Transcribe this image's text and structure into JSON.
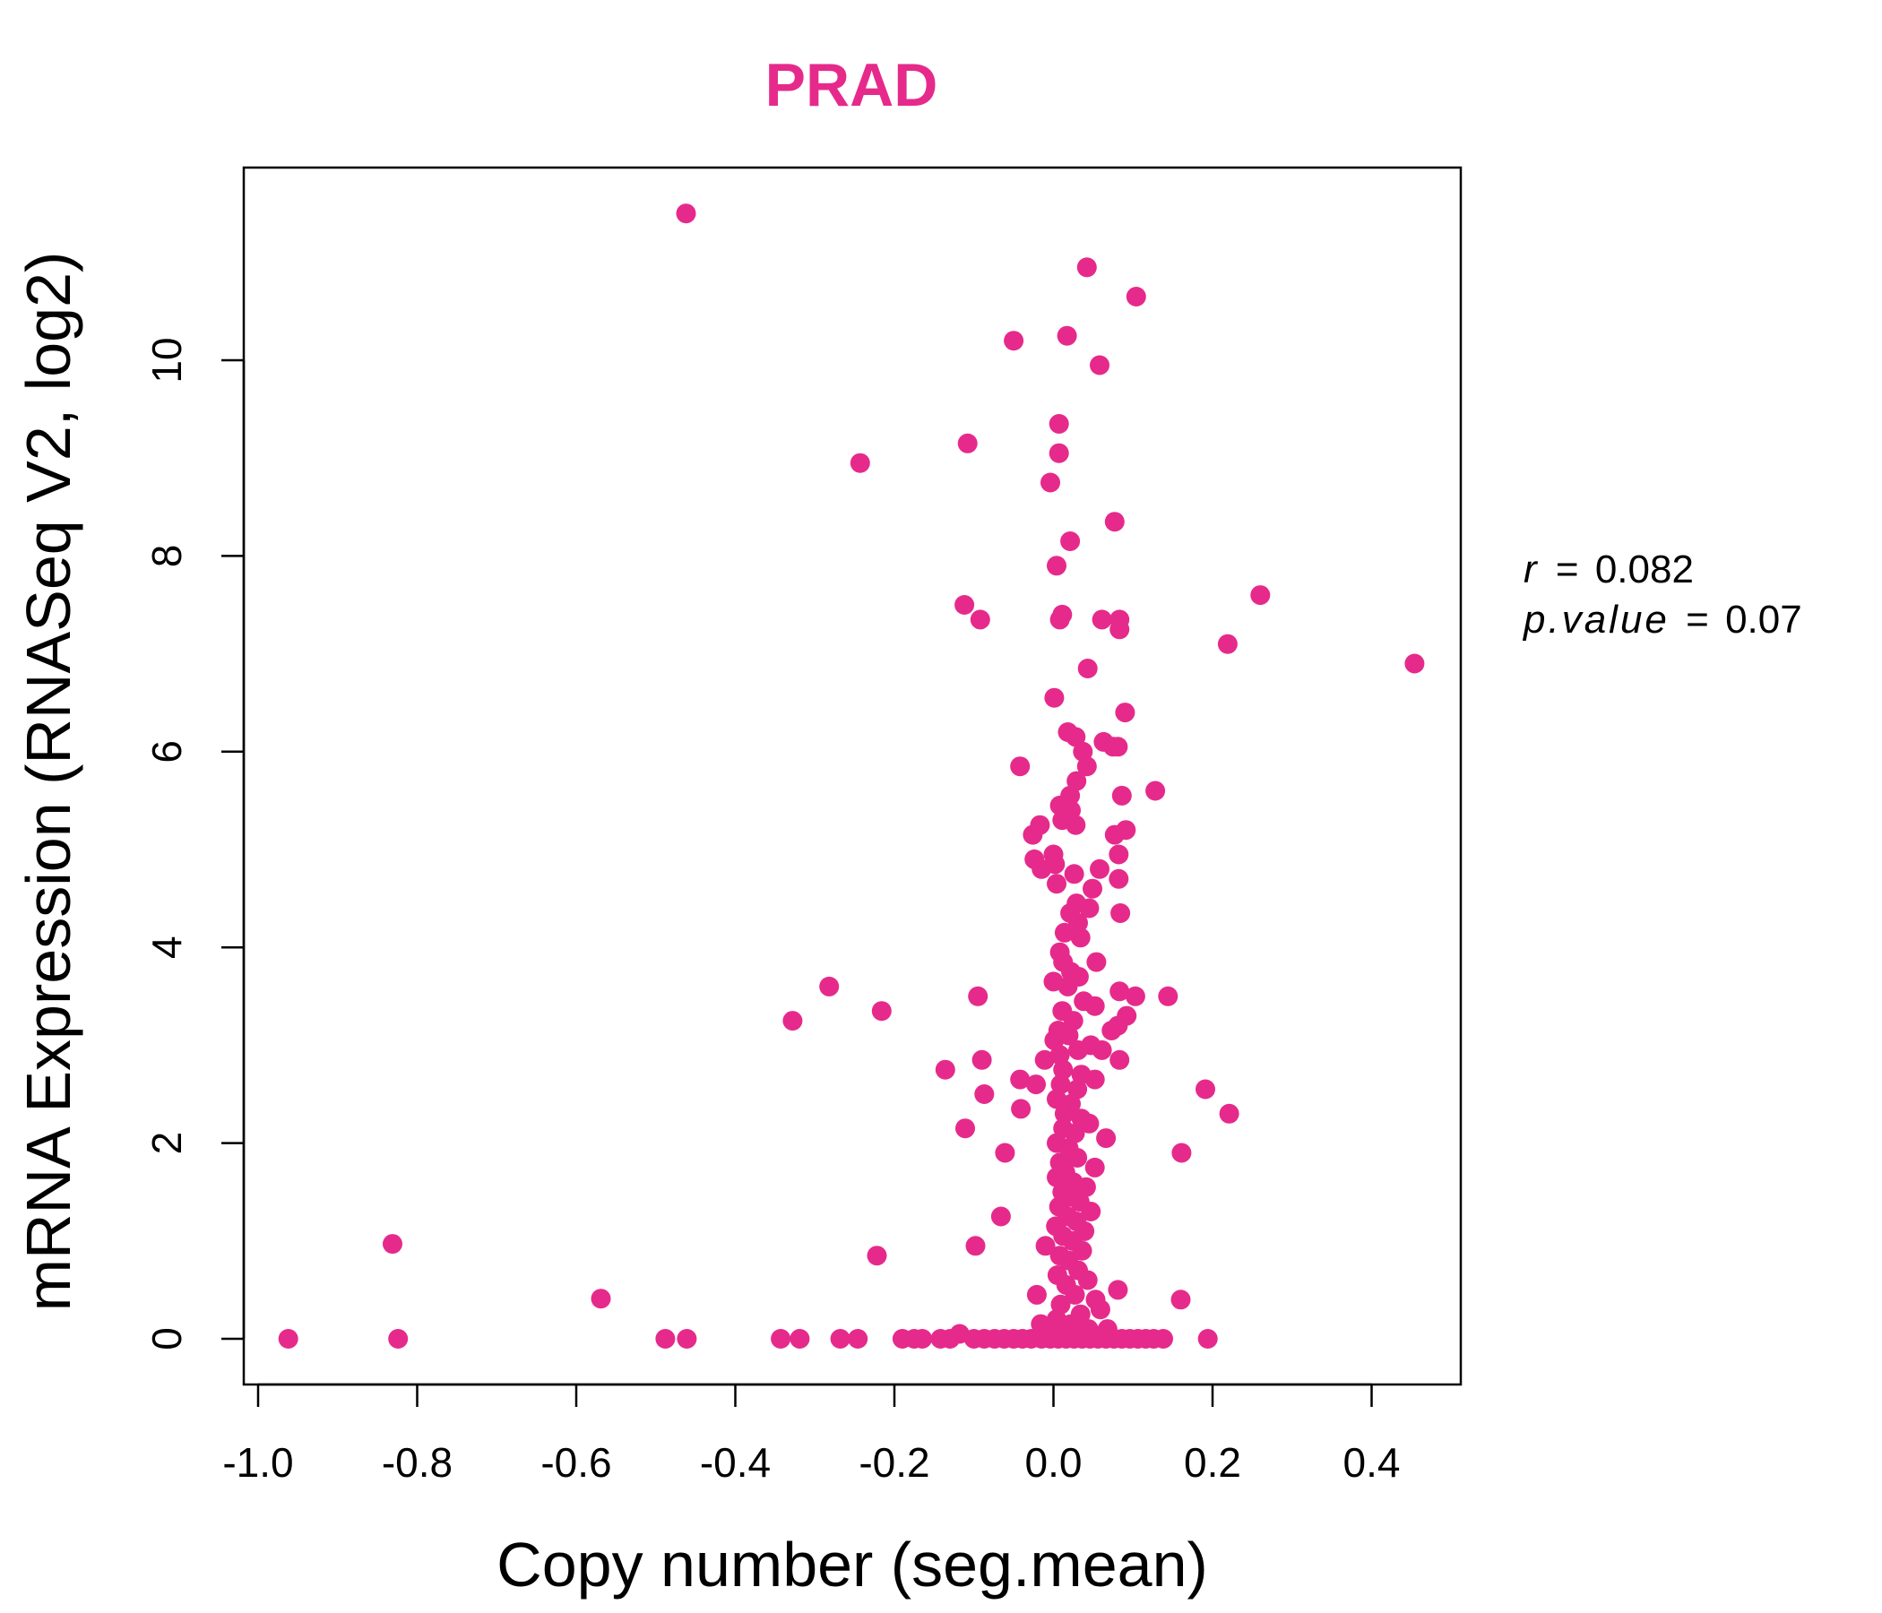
{
  "chart_data": {
    "type": "scatter",
    "title": "PRAD",
    "xlabel": "Copy number (seg.mean)",
    "ylabel": "mRNA Expression (RNASeq V2, log2)",
    "xlim": [
      -1.0,
      0.5
    ],
    "ylim": [
      -0.9,
      11.5
    ],
    "xticks": [
      -1.0,
      -0.8,
      -0.6,
      -0.4,
      -0.2,
      0.0,
      0.2,
      0.4
    ],
    "xtick_labels": [
      "-1.0",
      "-0.8",
      "-0.6",
      "-0.4",
      "-0.2",
      "0.0",
      "0.2",
      "0.4"
    ],
    "yticks": [
      0,
      2,
      4,
      6,
      8,
      10
    ],
    "ytick_labels": [
      "0",
      "2",
      "4",
      "6",
      "8",
      "10"
    ],
    "grid": false,
    "colors": {
      "point": "#e62a8b",
      "title": "#e62a8b",
      "axis": "#000000"
    },
    "stats": {
      "r_symbol": "r",
      "r_value": "0.082",
      "p_symbol": "p.value",
      "p_value": "0.07",
      "equals": "="
    },
    "points": [
      [
        -0.462,
        11.5
      ],
      [
        0.042,
        10.95
      ],
      [
        0.104,
        10.65
      ],
      [
        -0.05,
        10.2
      ],
      [
        0.017,
        10.25
      ],
      [
        0.058,
        9.95
      ],
      [
        0.007,
        9.35
      ],
      [
        -0.108,
        9.15
      ],
      [
        -0.243,
        8.95
      ],
      [
        0.007,
        9.05
      ],
      [
        -0.004,
        8.75
      ],
      [
        0.077,
        8.35
      ],
      [
        0.021,
        8.15
      ],
      [
        0.004,
        7.9
      ],
      [
        0.26,
        7.6
      ],
      [
        -0.112,
        7.5
      ],
      [
        -0.092,
        7.35
      ],
      [
        0.011,
        7.4
      ],
      [
        0.008,
        7.35
      ],
      [
        0.061,
        7.35
      ],
      [
        0.083,
        7.35
      ],
      [
        0.083,
        7.25
      ],
      [
        0.219,
        7.1
      ],
      [
        0.454,
        6.9
      ],
      [
        0.043,
        6.85
      ],
      [
        0.001,
        6.55
      ],
      [
        0.09,
        6.4
      ],
      [
        0.018,
        6.2
      ],
      [
        0.028,
        6.15
      ],
      [
        0.063,
        6.1
      ],
      [
        0.075,
        6.05
      ],
      [
        0.081,
        6.05
      ],
      [
        0.037,
        6.0
      ],
      [
        0.042,
        5.85
      ],
      [
        -0.042,
        5.85
      ],
      [
        0.029,
        5.7
      ],
      [
        0.128,
        5.6
      ],
      [
        0.086,
        5.55
      ],
      [
        0.021,
        5.55
      ],
      [
        0.008,
        5.45
      ],
      [
        0.022,
        5.4
      ],
      [
        0.011,
        5.3
      ],
      [
        -0.017,
        5.25
      ],
      [
        0.091,
        5.2
      ],
      [
        -0.026,
        5.15
      ],
      [
        0.077,
        5.15
      ],
      [
        0.028,
        5.25
      ],
      [
        0.082,
        4.95
      ],
      [
        0.0,
        4.95
      ],
      [
        -0.024,
        4.9
      ],
      [
        0.002,
        4.85
      ],
      [
        -0.015,
        4.8
      ],
      [
        0.058,
        4.8
      ],
      [
        0.026,
        4.75
      ],
      [
        0.082,
        4.7
      ],
      [
        0.004,
        4.65
      ],
      [
        0.049,
        4.6
      ],
      [
        0.029,
        4.45
      ],
      [
        0.045,
        4.4
      ],
      [
        0.021,
        4.35
      ],
      [
        0.084,
        4.35
      ],
      [
        0.031,
        4.25
      ],
      [
        0.014,
        4.15
      ],
      [
        0.034,
        4.1
      ],
      [
        0.008,
        3.95
      ],
      [
        0.012,
        3.85
      ],
      [
        0.054,
        3.85
      ],
      [
        0.022,
        3.75
      ],
      [
        0.032,
        3.7
      ],
      [
        0.0,
        3.65
      ],
      [
        0.018,
        3.6
      ],
      [
        0.083,
        3.55
      ],
      [
        0.144,
        3.5
      ],
      [
        0.103,
        3.5
      ],
      [
        -0.095,
        3.5
      ],
      [
        0.038,
        3.45
      ],
      [
        0.052,
        3.4
      ],
      [
        0.011,
        3.35
      ],
      [
        -0.216,
        3.35
      ],
      [
        -0.282,
        3.6
      ],
      [
        -0.328,
        3.25
      ],
      [
        0.092,
        3.3
      ],
      [
        0.025,
        3.25
      ],
      [
        0.006,
        3.15
      ],
      [
        0.019,
        3.1
      ],
      [
        0.073,
        3.15
      ],
      [
        0.081,
        3.2
      ],
      [
        0.001,
        3.05
      ],
      [
        0.031,
        2.95
      ],
      [
        0.047,
        3.0
      ],
      [
        0.061,
        2.95
      ],
      [
        0.008,
        2.9
      ],
      [
        0.083,
        2.85
      ],
      [
        -0.011,
        2.85
      ],
      [
        -0.09,
        2.85
      ],
      [
        -0.136,
        2.75
      ],
      [
        0.012,
        2.75
      ],
      [
        0.035,
        2.7
      ],
      [
        0.052,
        2.65
      ],
      [
        -0.042,
        2.65
      ],
      [
        -0.022,
        2.6
      ],
      [
        0.009,
        2.6
      ],
      [
        0.03,
        2.55
      ],
      [
        0.191,
        2.55
      ],
      [
        -0.087,
        2.5
      ],
      [
        0.004,
        2.45
      ],
      [
        0.022,
        2.4
      ],
      [
        -0.041,
        2.35
      ],
      [
        0.014,
        2.3
      ],
      [
        0.221,
        2.3
      ],
      [
        0.035,
        2.25
      ],
      [
        0.045,
        2.2
      ],
      [
        0.012,
        2.15
      ],
      [
        -0.111,
        2.15
      ],
      [
        0.027,
        2.1
      ],
      [
        0.066,
        2.05
      ],
      [
        0.004,
        2.0
      ],
      [
        0.019,
        1.95
      ],
      [
        -0.061,
        1.9
      ],
      [
        0.161,
        1.9
      ],
      [
        0.03,
        1.85
      ],
      [
        0.008,
        1.8
      ],
      [
        0.052,
        1.75
      ],
      [
        0.015,
        1.7
      ],
      [
        0.004,
        1.65
      ],
      [
        0.025,
        1.6
      ],
      [
        0.041,
        1.55
      ],
      [
        0.011,
        1.5
      ],
      [
        0.02,
        1.45
      ],
      [
        0.033,
        1.4
      ],
      [
        0.007,
        1.35
      ],
      [
        0.047,
        1.3
      ],
      [
        0.018,
        1.25
      ],
      [
        -0.066,
        1.25
      ],
      [
        0.029,
        1.2
      ],
      [
        0.003,
        1.15
      ],
      [
        0.039,
        1.1
      ],
      [
        0.012,
        1.05
      ],
      [
        0.024,
        1.0
      ],
      [
        -0.098,
        0.95
      ],
      [
        -0.831,
        0.97
      ],
      [
        -0.01,
        0.95
      ],
      [
        0.036,
        0.9
      ],
      [
        0.008,
        0.85
      ],
      [
        -0.222,
        0.85
      ],
      [
        0.019,
        0.8
      ],
      [
        0.031,
        0.7
      ],
      [
        0.005,
        0.65
      ],
      [
        0.043,
        0.6
      ],
      [
        0.016,
        0.55
      ],
      [
        0.081,
        0.5
      ],
      [
        0.027,
        0.45
      ],
      [
        -0.021,
        0.45
      ],
      [
        0.053,
        0.4
      ],
      [
        0.16,
        0.4
      ],
      [
        -0.569,
        0.41
      ],
      [
        0.009,
        0.35
      ],
      [
        0.059,
        0.3
      ],
      [
        0.034,
        0.25
      ],
      [
        0.004,
        0.2
      ],
      [
        0.022,
        0.15
      ],
      [
        -0.016,
        0.15
      ],
      [
        0.044,
        0.1
      ],
      [
        -0.004,
        0.05
      ],
      [
        -0.118,
        0.05
      ],
      [
        0.012,
        0.05
      ],
      [
        0.068,
        0.1
      ],
      [
        -0.962,
        0.0
      ],
      [
        -0.824,
        0.0
      ],
      [
        -0.488,
        0.0
      ],
      [
        -0.461,
        0.0
      ],
      [
        -0.343,
        0.0
      ],
      [
        -0.319,
        0.0
      ],
      [
        -0.268,
        0.0
      ],
      [
        -0.246,
        0.0
      ],
      [
        -0.19,
        0.0
      ],
      [
        -0.175,
        0.0
      ],
      [
        -0.165,
        0.0
      ],
      [
        -0.142,
        0.0
      ],
      [
        -0.13,
        0.0
      ],
      [
        -0.1,
        0.0
      ],
      [
        -0.087,
        0.0
      ],
      [
        -0.074,
        0.0
      ],
      [
        -0.062,
        0.0
      ],
      [
        -0.05,
        0.0
      ],
      [
        -0.039,
        0.0
      ],
      [
        -0.028,
        0.0
      ],
      [
        -0.015,
        0.0
      ],
      [
        -0.004,
        0.0
      ],
      [
        0.006,
        0.0
      ],
      [
        0.016,
        0.0
      ],
      [
        0.026,
        0.0
      ],
      [
        0.036,
        0.0
      ],
      [
        0.046,
        0.0
      ],
      [
        0.056,
        0.0
      ],
      [
        0.066,
        0.0
      ],
      [
        0.076,
        0.0
      ],
      [
        0.086,
        0.0
      ],
      [
        0.096,
        0.0
      ],
      [
        0.106,
        0.0
      ],
      [
        0.116,
        0.0
      ],
      [
        0.126,
        0.0
      ],
      [
        0.138,
        0.0
      ],
      [
        0.194,
        0.0
      ]
    ]
  }
}
